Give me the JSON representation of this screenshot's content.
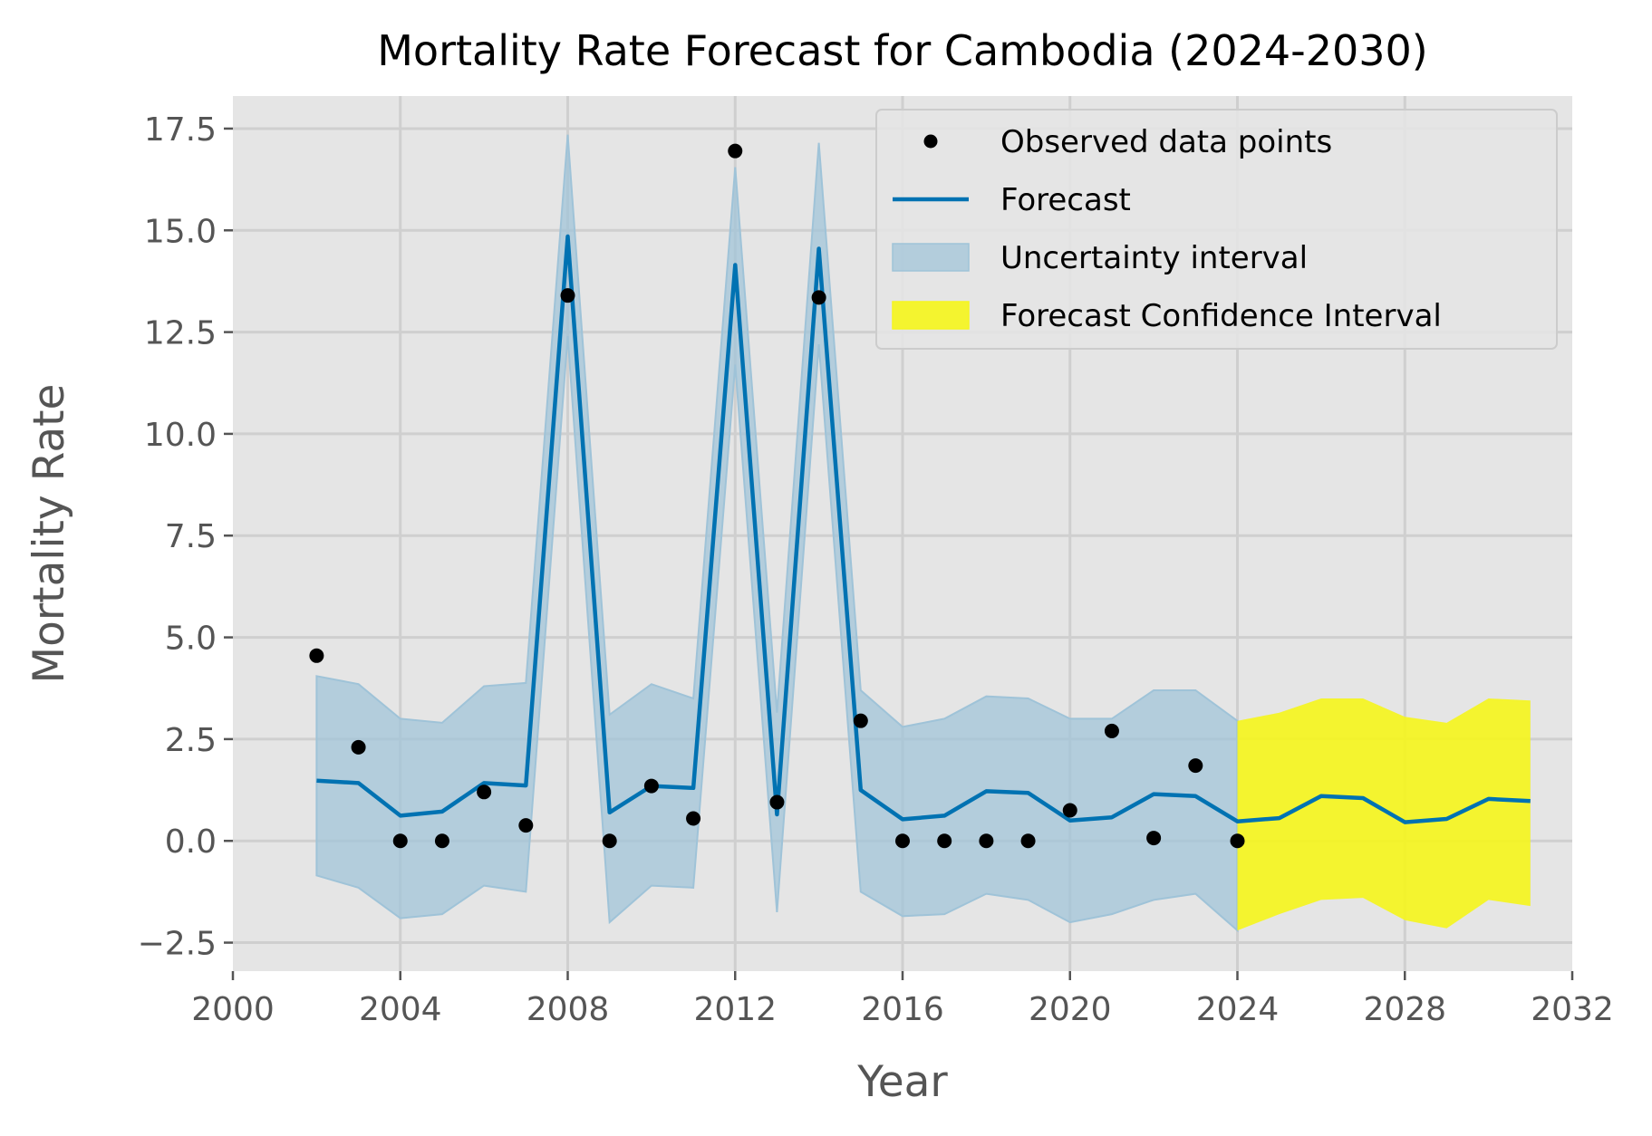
{
  "chart_data": {
    "type": "line",
    "title": "Mortality Rate Forecast for Cambodia (2024-2030)",
    "xlabel": "Year",
    "ylabel": "Mortality Rate",
    "xlim": [
      2000,
      2032
    ],
    "ylim": [
      -3.2,
      18.3
    ],
    "xticks": [
      2000,
      2004,
      2008,
      2012,
      2016,
      2020,
      2024,
      2028,
      2032
    ],
    "yticks": [
      -2.5,
      0.0,
      2.5,
      5.0,
      7.5,
      10.0,
      12.5,
      15.0,
      17.5
    ],
    "ytick_labels": [
      "−2.5",
      "0.0",
      "2.5",
      "5.0",
      "7.5",
      "10.0",
      "12.5",
      "15.0",
      "17.5"
    ],
    "grid": true,
    "legend_position": "upper-right",
    "colors": {
      "background": "#e5e5e5",
      "grid": "#cfcfcf",
      "forecast": "#0072b2",
      "uncertainty": "#9fc3d8",
      "forecast_ci": "#f5f520",
      "points": "#000000"
    },
    "observed": {
      "name": "Observed data points",
      "x": [
        2002,
        2003,
        2004,
        2005,
        2006,
        2007,
        2008,
        2009,
        2010,
        2011,
        2012,
        2013,
        2014,
        2015,
        2016,
        2017,
        2018,
        2019,
        2020,
        2021,
        2022,
        2023,
        2024
      ],
      "y": [
        4.55,
        2.3,
        0.0,
        0.0,
        1.2,
        0.38,
        13.4,
        0.0,
        1.35,
        0.55,
        16.95,
        0.95,
        13.35,
        2.95,
        0.0,
        0.0,
        0.0,
        0.0,
        0.75,
        2.7,
        0.07,
        1.85,
        0.0
      ]
    },
    "forecast": {
      "name": "Forecast",
      "x": [
        2002,
        2003,
        2004,
        2005,
        2006,
        2007,
        2008,
        2009,
        2010,
        2011,
        2012,
        2013,
        2014,
        2015,
        2016,
        2017,
        2018,
        2019,
        2020,
        2021,
        2022,
        2023,
        2024,
        2025,
        2026,
        2027,
        2028,
        2029,
        2030,
        2031
      ],
      "y": [
        1.48,
        1.42,
        0.62,
        0.72,
        1.42,
        1.36,
        14.85,
        0.7,
        1.35,
        1.3,
        14.15,
        0.65,
        14.55,
        1.25,
        0.53,
        0.62,
        1.22,
        1.18,
        0.5,
        0.58,
        1.15,
        1.1,
        0.48,
        0.56,
        1.1,
        1.05,
        0.46,
        0.54,
        1.03,
        0.98
      ]
    },
    "uncertainty": {
      "name": "Uncertainty interval",
      "x": [
        2002,
        2003,
        2004,
        2005,
        2006,
        2007,
        2008,
        2009,
        2010,
        2011,
        2012,
        2013,
        2014,
        2015,
        2016,
        2017,
        2018,
        2019,
        2020,
        2021,
        2022,
        2023,
        2024
      ],
      "lower": [
        -0.85,
        -1.15,
        -1.9,
        -1.8,
        -1.1,
        -1.25,
        12.4,
        -2.0,
        -1.1,
        -1.15,
        11.7,
        -1.75,
        12.2,
        -1.25,
        -1.85,
        -1.8,
        -1.3,
        -1.45,
        -2.0,
        -1.8,
        -1.45,
        -1.3,
        -2.2
      ],
      "upper": [
        4.05,
        3.85,
        3.0,
        2.9,
        3.8,
        3.88,
        17.35,
        3.1,
        3.85,
        3.5,
        16.55,
        3.15,
        17.15,
        3.7,
        2.8,
        3.0,
        3.55,
        3.5,
        3.0,
        3.0,
        3.7,
        3.7,
        2.95
      ]
    },
    "forecast_ci": {
      "name": "Forecast Confidence Interval",
      "x": [
        2024,
        2025,
        2026,
        2027,
        2028,
        2029,
        2030,
        2031
      ],
      "lower": [
        -2.2,
        -1.8,
        -1.45,
        -1.4,
        -1.95,
        -2.15,
        -1.45,
        -1.6
      ],
      "upper": [
        2.95,
        3.15,
        3.5,
        3.5,
        3.05,
        2.9,
        3.5,
        3.45
      ]
    }
  }
}
